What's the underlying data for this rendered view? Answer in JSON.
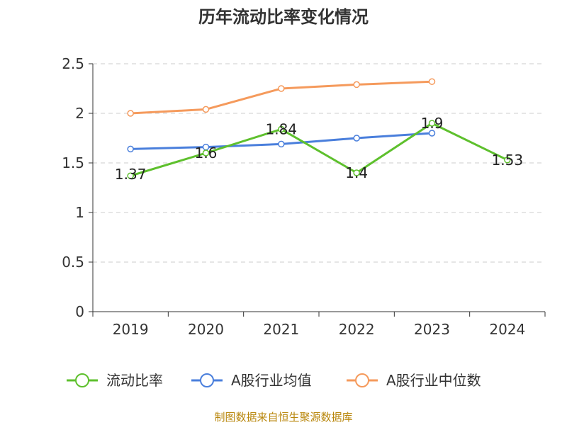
{
  "chart_data": {
    "type": "line",
    "title": "历年流动比率变化情况",
    "categories": [
      "2019",
      "2020",
      "2021",
      "2022",
      "2023",
      "2024"
    ],
    "ylim": [
      0,
      2.5
    ],
    "yticks": [
      "0",
      "0.5",
      "1",
      "1.5",
      "2",
      "2.5"
    ],
    "grid": true,
    "legend_position": "bottom",
    "series": [
      {
        "name": "流动比率",
        "color": "#5ec02d",
        "values": [
          1.37,
          1.6,
          1.84,
          1.4,
          1.9,
          1.53
        ],
        "labels": [
          "1.37",
          "1.6",
          "1.84",
          "1.4",
          "1.9",
          "1.53"
        ]
      },
      {
        "name": "A股行业均值",
        "color": "#4a7fdc",
        "values": [
          1.64,
          1.66,
          1.69,
          1.75,
          1.8,
          null
        ]
      },
      {
        "name": "A股行业中位数",
        "color": "#f59a5c",
        "values": [
          2.0,
          2.04,
          2.25,
          2.29,
          2.32,
          null
        ]
      }
    ],
    "source": "制图数据来自恒生聚源数据库"
  }
}
